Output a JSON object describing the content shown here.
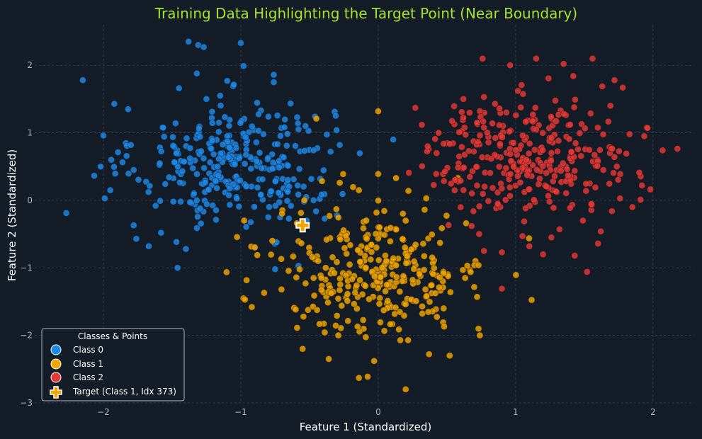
{
  "chart_data": {
    "type": "scatter",
    "title": "Training Data Highlighting the Target Point (Near Boundary)",
    "xlabel": "Feature 1 (Standardized)",
    "ylabel": "Feature 2 (Standardized)",
    "xlim": [
      -2.5,
      2.3
    ],
    "ylim": [
      -3.0,
      2.6
    ],
    "xticks": [
      -2,
      -1,
      0,
      1,
      2
    ],
    "yticks": [
      -3,
      -2,
      -1,
      0,
      1,
      2
    ],
    "grid": true,
    "legend": {
      "title": "Classes & Points",
      "position": "bottom-left",
      "entries": [
        "Class 0",
        "Class 1",
        "Class 2",
        "Target (Class 1, Idx 373)"
      ]
    },
    "series": [
      {
        "name": "Class 0",
        "color": "#1e88e5",
        "marker": "circle",
        "count": 300,
        "center": [
          -1.05,
          0.55
        ],
        "spread": [
          0.36,
          0.55
        ],
        "points": [
          [
            -2.27,
            -0.19
          ],
          [
            -2.15,
            1.78
          ],
          [
            -2.0,
            0.96
          ],
          [
            -2.02,
            0.5
          ],
          [
            -1.95,
            0.15
          ],
          [
            -1.99,
            0.03
          ],
          [
            -1.82,
            1.35
          ],
          [
            -1.8,
            0.82
          ],
          [
            -1.78,
            0.45
          ],
          [
            -1.78,
            -0.37
          ],
          [
            -1.76,
            -0.57
          ],
          [
            -1.67,
            -0.68
          ],
          [
            -1.62,
            -0.08
          ],
          [
            -1.46,
            -1.0
          ],
          [
            -1.45,
            1.66
          ],
          [
            -1.4,
            -0.72
          ],
          [
            -1.38,
            2.35
          ],
          [
            -1.32,
            1.88
          ],
          [
            -1.31,
            2.3
          ],
          [
            -1.27,
            2.27
          ],
          [
            -1.25,
            1.5
          ],
          [
            -1.15,
            1.55
          ],
          [
            -1.0,
            2.33
          ],
          [
            -0.98,
            1.99
          ],
          [
            -0.9,
            -0.7
          ],
          [
            -0.8,
            -0.25
          ],
          [
            -0.76,
            1.86
          ],
          [
            -0.76,
            1.75
          ],
          [
            -0.77,
            0.47
          ],
          [
            -0.74,
            -0.62
          ],
          [
            -0.65,
            -0.27
          ],
          [
            -0.59,
            1.23
          ],
          [
            -0.54,
            -0.02
          ],
          [
            -0.52,
            -0.3
          ],
          [
            -0.47,
            0.0
          ],
          [
            -0.47,
            0.74
          ],
          [
            -0.46,
            1.24
          ],
          [
            -0.28,
            0.82
          ],
          [
            -0.75,
            -1.02
          ],
          [
            -0.58,
            -0.97
          ]
        ]
      },
      {
        "name": "Class 1",
        "color": "#f0a500",
        "marker": "circle",
        "count": 300,
        "center": [
          0.0,
          -1.05
        ],
        "spread": [
          0.38,
          0.58
        ],
        "points": [
          [
            -0.45,
            1.21
          ],
          [
            -0.28,
            0.26
          ],
          [
            -0.14,
            0.15
          ],
          [
            -0.88,
            -0.81
          ],
          [
            -0.77,
            -0.6
          ],
          [
            -0.97,
            -1.47
          ],
          [
            -0.92,
            -1.58
          ],
          [
            -0.83,
            -1.37
          ],
          [
            -0.55,
            -2.2
          ],
          [
            -0.36,
            -2.35
          ],
          [
            -0.14,
            -2.63
          ],
          [
            -0.03,
            -2.38
          ],
          [
            0.2,
            -2.8
          ],
          [
            0.37,
            -2.28
          ],
          [
            0.52,
            -2.3
          ],
          [
            0.0,
            1.32
          ],
          [
            0.0,
            0.39
          ],
          [
            0.13,
            0.33
          ],
          [
            0.22,
            0.14
          ],
          [
            0.35,
            0.03
          ],
          [
            0.58,
            0.33
          ],
          [
            0.64,
            -0.34
          ],
          [
            0.7,
            -0.96
          ],
          [
            0.73,
            -0.96
          ],
          [
            0.72,
            -1.43
          ],
          [
            0.73,
            -1.9
          ],
          [
            0.74,
            -2.0
          ],
          [
            0.48,
            -1.87
          ],
          [
            0.45,
            -0.63
          ],
          [
            -0.48,
            -0.84
          ],
          [
            -0.47,
            -1.15
          ],
          [
            -0.15,
            -1.87
          ],
          [
            0.2,
            -1.54
          ]
        ]
      },
      {
        "name": "Class 2",
        "color": "#e53935",
        "marker": "circle",
        "count": 300,
        "center": [
          1.1,
          0.65
        ],
        "spread": [
          0.38,
          0.5
        ],
        "points": [
          [
            0.27,
            1.37
          ],
          [
            0.36,
            0.8
          ],
          [
            0.44,
            1.0
          ],
          [
            0.6,
            0.29
          ],
          [
            0.62,
            1.5
          ],
          [
            0.66,
            0.73
          ],
          [
            0.68,
            -0.38
          ],
          [
            0.72,
            1.15
          ],
          [
            0.76,
            2.1
          ],
          [
            0.77,
            1.53
          ],
          [
            0.85,
            1.43
          ],
          [
            0.87,
            -0.05
          ],
          [
            0.9,
            -0.77
          ],
          [
            0.9,
            -1.31
          ],
          [
            1.05,
            -0.53
          ],
          [
            1.15,
            2.1
          ],
          [
            1.26,
            -0.55
          ],
          [
            1.32,
            -0.43
          ],
          [
            1.35,
            2.02
          ],
          [
            1.42,
            1.84
          ],
          [
            1.49,
            -0.3
          ],
          [
            1.52,
            -1.06
          ],
          [
            1.56,
            2.1
          ],
          [
            1.62,
            -0.46
          ],
          [
            1.69,
            1.4
          ],
          [
            1.72,
            1.78
          ],
          [
            1.78,
            1.67
          ],
          [
            1.83,
            0.98
          ],
          [
            1.85,
            -0.1
          ],
          [
            1.9,
            0.41
          ],
          [
            1.92,
            0.22
          ],
          [
            1.96,
            1.07
          ],
          [
            2.07,
            0.74
          ],
          [
            1.1,
            -0.68
          ],
          [
            0.77,
            -0.75
          ],
          [
            1.43,
            -0.82
          ],
          [
            1.6,
            -0.64
          ],
          [
            0.96,
            2.0
          ],
          [
            1.2,
            -0.8
          ]
        ]
      }
    ],
    "target": {
      "name": "Target (Class 1, Idx 373)",
      "x": -0.55,
      "y": -0.37,
      "color": "#f0a500",
      "marker": "plus"
    }
  },
  "colors": {
    "background": "#141c28",
    "title": "#a7e22e",
    "grid": "#3b4658",
    "axis_text": "#aeb6c2",
    "label_text": "#ffffff"
  }
}
